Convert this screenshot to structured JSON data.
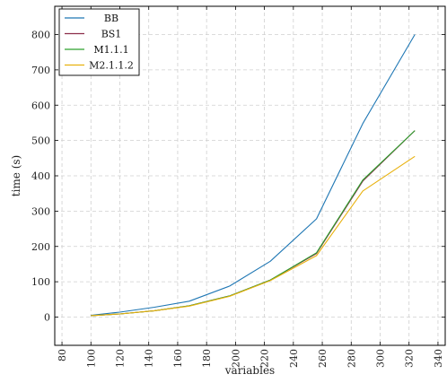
{
  "chart_data": {
    "type": "line",
    "title": "",
    "xlabel": "variables",
    "ylabel": "time (s)",
    "xlim": [
      75,
      345
    ],
    "ylim": [
      -80,
      880
    ],
    "xticks": [
      80,
      100,
      120,
      140,
      160,
      180,
      200,
      220,
      240,
      260,
      280,
      300,
      320,
      340
    ],
    "yticks": [
      0,
      100,
      200,
      300,
      400,
      500,
      600,
      700,
      800
    ],
    "grid": true,
    "legend_position": "top-left",
    "series": [
      {
        "name": "BB",
        "color": "#1f77b4",
        "x": [
          100,
          120,
          144,
          168,
          196,
          224,
          256,
          288,
          324
        ],
        "y": [
          5,
          14,
          28,
          45,
          88,
          158,
          278,
          548,
          800
        ]
      },
      {
        "name": "BS1",
        "color": "#8c2d4a",
        "x": [
          100,
          120,
          144,
          168,
          196,
          224,
          256,
          288,
          324
        ],
        "y": [
          4,
          9,
          18,
          32,
          60,
          105,
          180,
          385,
          528
        ]
      },
      {
        "name": "M1.1.1",
        "color": "#2ca02c",
        "x": [
          100,
          120,
          144,
          168,
          196,
          224,
          256,
          288,
          324
        ],
        "y": [
          4,
          9,
          18,
          32,
          60,
          105,
          182,
          388,
          528
        ]
      },
      {
        "name": "M2.1.1.2",
        "color": "#e8b10e",
        "x": [
          100,
          120,
          144,
          168,
          196,
          224,
          256,
          288,
          324
        ],
        "y": [
          4,
          9,
          18,
          31,
          59,
          103,
          174,
          357,
          455
        ]
      }
    ]
  }
}
